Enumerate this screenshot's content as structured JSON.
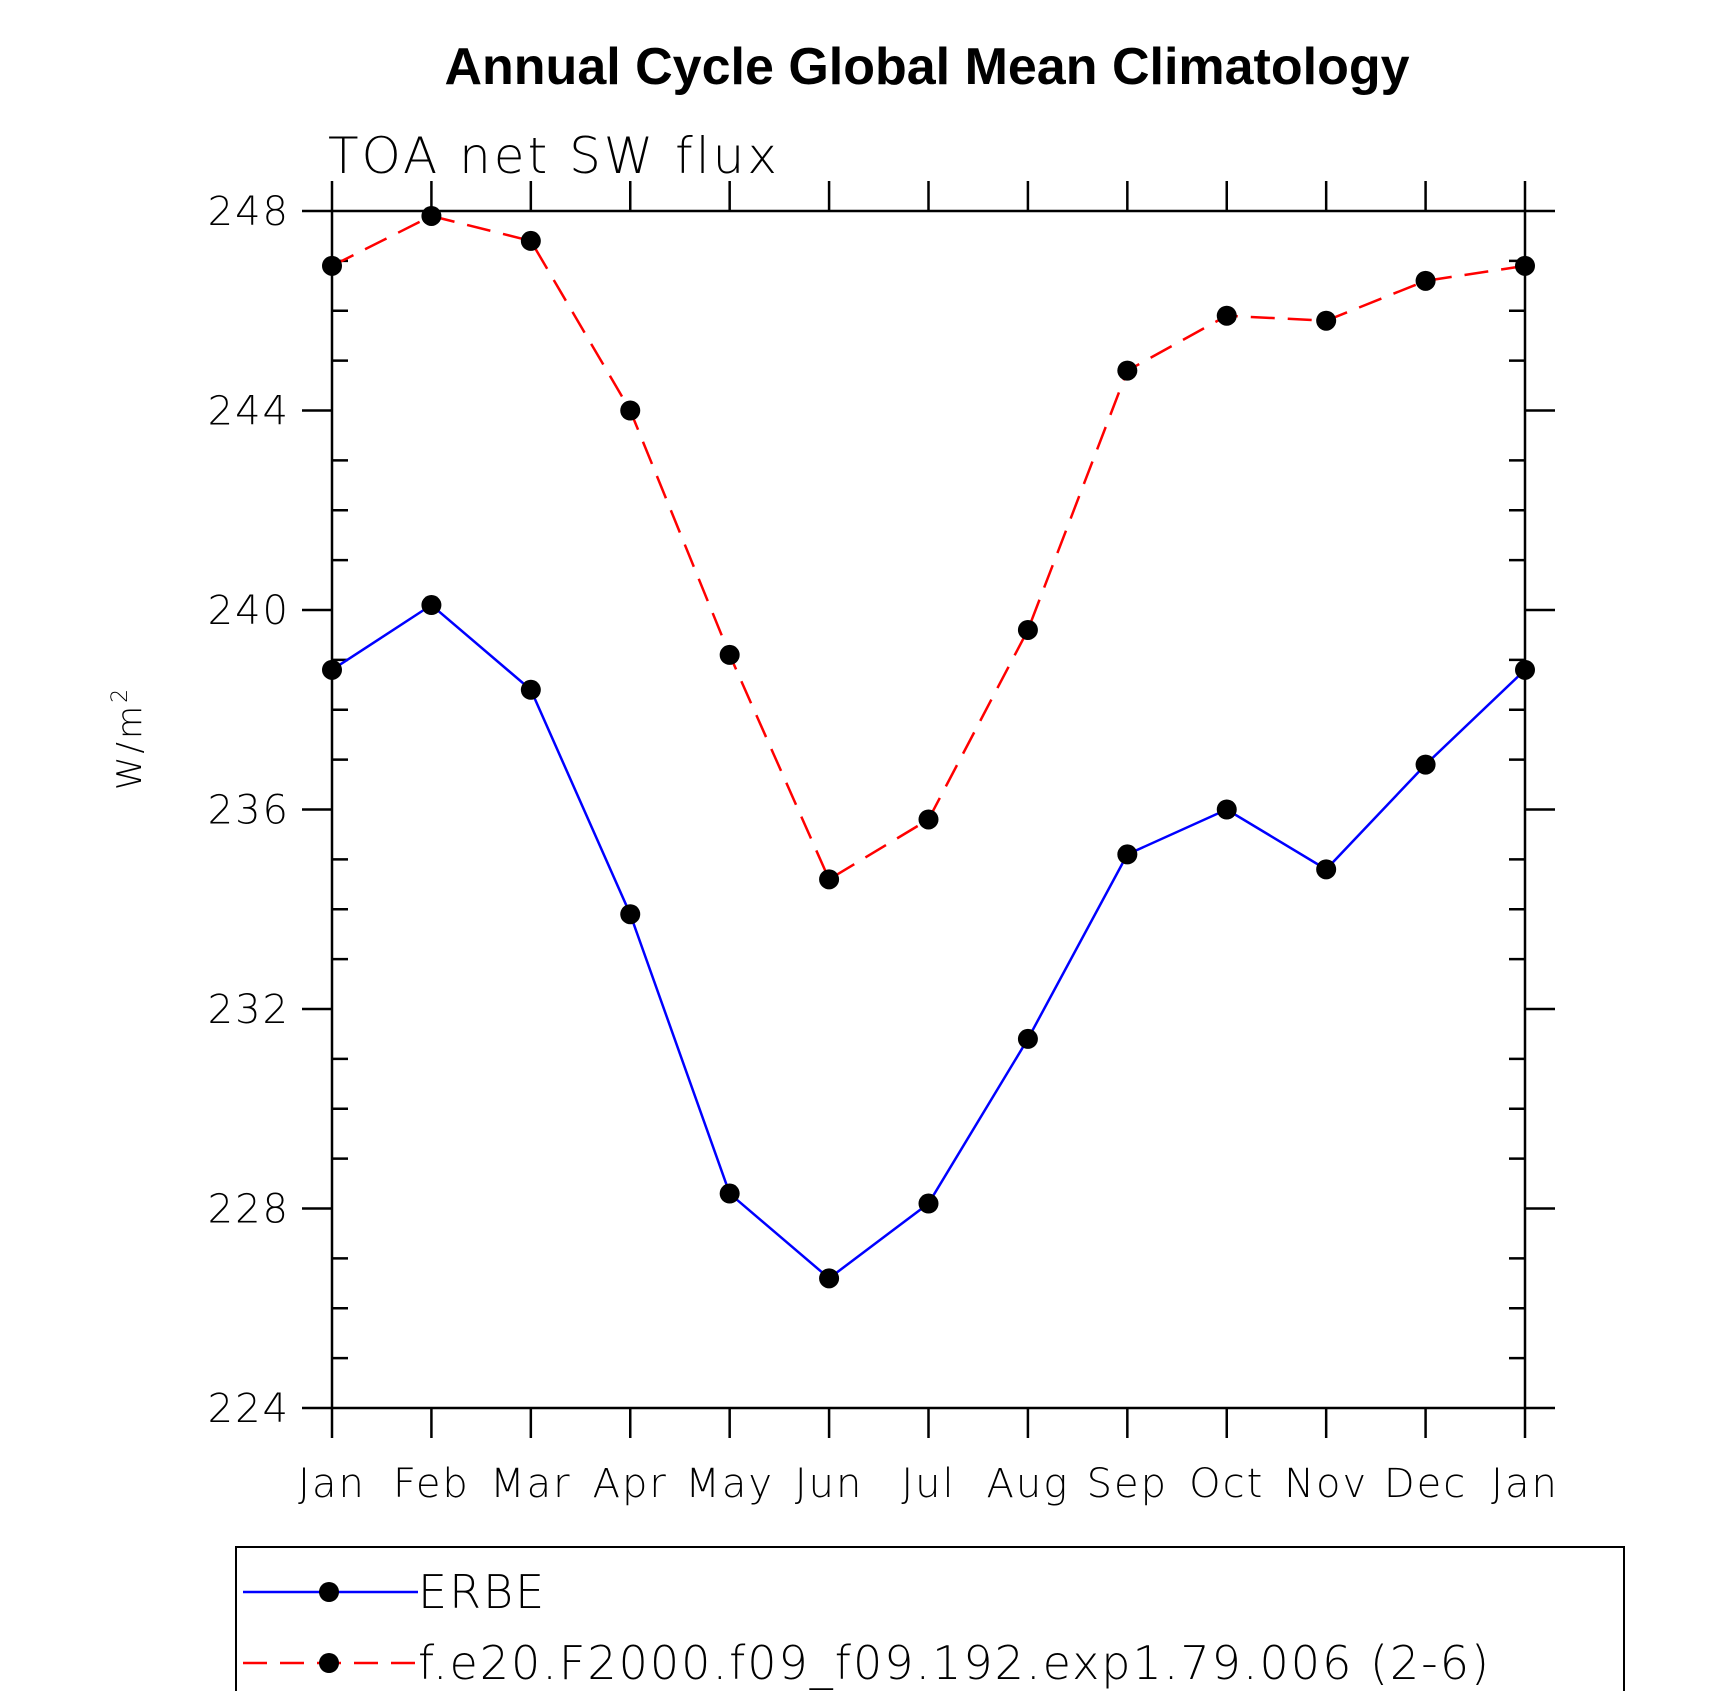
{
  "chart_data": {
    "type": "line",
    "title": "Annual Cycle Global Mean Climatology",
    "subtitle": "TOA net SW flux",
    "ylabel_base": "W/m",
    "ylabel_sup": "2",
    "xlabel": "",
    "categories": [
      "Jan",
      "Feb",
      "Mar",
      "Apr",
      "May",
      "Jun",
      "Jul",
      "Aug",
      "Sep",
      "Oct",
      "Nov",
      "Dec",
      "Jan"
    ],
    "ylim": [
      224,
      248
    ],
    "yticks": [
      224,
      228,
      232,
      236,
      240,
      244,
      248
    ],
    "yminor_step": 1,
    "grid": false,
    "legend_position": "bottom",
    "series": [
      {
        "name": "ERBE",
        "color": "#0000ff",
        "line_style": "solid",
        "marker": "filled-circle",
        "values": [
          238.8,
          240.1,
          238.4,
          233.9,
          228.3,
          226.6,
          228.1,
          231.4,
          235.1,
          236.0,
          234.8,
          236.9,
          238.8
        ]
      },
      {
        "name": "f.e20.F2000.f09_f09.192.exp1.79.006 (2-6)",
        "color": "#ff0000",
        "line_style": "dashed",
        "marker": "filled-circle",
        "values": [
          246.9,
          247.9,
          247.4,
          244.0,
          239.1,
          234.6,
          235.8,
          239.6,
          244.8,
          245.9,
          245.8,
          246.6,
          246.9
        ]
      }
    ]
  }
}
